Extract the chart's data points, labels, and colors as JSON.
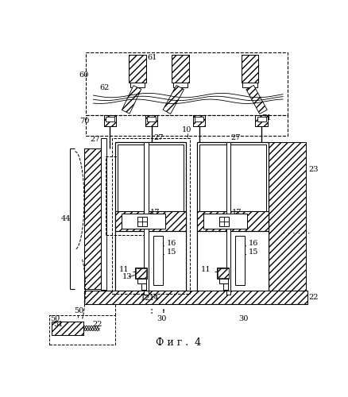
{
  "title": "Ф и г .  4",
  "title_fontsize": 9,
  "bg_color": "#ffffff",
  "fig_width": 4.38,
  "fig_height": 5.0,
  "dpi": 100
}
